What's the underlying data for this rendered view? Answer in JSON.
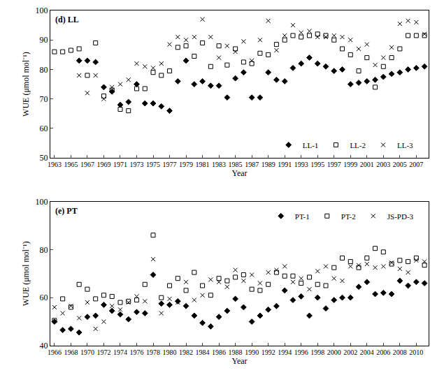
{
  "chart_data": [
    {
      "type": "scatter",
      "title": "(d) LL",
      "x_label": "Year",
      "y_label": "WUE (μmol mol⁻¹)",
      "x": [
        1963,
        1964,
        1965,
        1966,
        1967,
        1968,
        1969,
        1970,
        1971,
        1972,
        1973,
        1974,
        1975,
        1976,
        1977,
        1978,
        1979,
        1980,
        1981,
        1982,
        1983,
        1984,
        1985,
        1986,
        1987,
        1988,
        1989,
        1990,
        1991,
        1992,
        1993,
        1994,
        1995,
        1996,
        1997,
        1998,
        1999,
        2000,
        2001,
        2002,
        2003,
        2004,
        2005,
        2006,
        2007,
        2008
      ],
      "series": [
        {
          "name": "LL-1",
          "color": "#000000",
          "marker": "diamond",
          "values": [
            null,
            null,
            null,
            83,
            83,
            82.5,
            74,
            72.5,
            68,
            69,
            75,
            68.5,
            68.5,
            67.5,
            66,
            76,
            83,
            75,
            76,
            74.5,
            74.5,
            70.5,
            77,
            79,
            70.5,
            70.5,
            79,
            76.5,
            76,
            80.5,
            82,
            84,
            82,
            81,
            79.5,
            80,
            75,
            75.5,
            76,
            76.5,
            77.5,
            78.5,
            79,
            80,
            80.5,
            81
          ]
        },
        {
          "name": "LL-2",
          "color": "#000000",
          "marker": "square-open",
          "values": [
            86,
            86,
            86.5,
            87,
            78,
            89,
            71,
            73,
            66.5,
            66,
            73.5,
            73.5,
            79,
            78,
            79.5,
            87.5,
            88,
            84.5,
            89,
            81,
            88,
            81.5,
            87,
            82.5,
            82,
            85.5,
            85,
            88.5,
            90,
            91.5,
            91,
            91.5,
            92,
            91.5,
            90,
            87,
            85,
            79.5,
            84,
            74,
            81,
            84,
            87,
            91.5,
            91.5,
            91.5
          ]
        },
        {
          "name": "LL-3",
          "color": "#000000",
          "marker": "x-thin-open",
          "values": [
            null,
            null,
            null,
            78,
            72,
            78,
            70,
            74,
            75,
            76.5,
            82,
            81,
            80.5,
            82,
            88.5,
            91,
            90,
            91,
            97,
            91,
            84,
            88,
            86,
            89.5,
            83,
            90,
            96.5,
            86.5,
            91.5,
            95,
            92.5,
            93,
            91,
            91,
            91.5,
            91,
            90,
            87,
            88.5,
            81.5,
            84,
            87.5,
            95.5,
            96.5,
            96,
            92
          ]
        }
      ],
      "xlim": [
        1962.5,
        2008.5
      ],
      "xticks": [
        1963,
        1965,
        1967,
        1969,
        1971,
        1973,
        1975,
        1977,
        1979,
        1981,
        1983,
        1985,
        1987,
        1989,
        1991,
        1993,
        1995,
        1997,
        1999,
        2001,
        2003,
        2005,
        2007
      ],
      "ylim": [
        50,
        100
      ],
      "yticks": [
        50,
        60,
        70,
        80,
        90,
        100
      ],
      "grid": false,
      "legend": "lower right"
    },
    {
      "type": "scatter",
      "title": "(e) PT",
      "x_label": "Year",
      "y_label": "WUE (μmol mol⁻¹)",
      "x": [
        1966,
        1967,
        1968,
        1969,
        1970,
        1971,
        1972,
        1973,
        1974,
        1975,
        1976,
        1977,
        1978,
        1979,
        1980,
        1981,
        1982,
        1983,
        1984,
        1985,
        1986,
        1987,
        1988,
        1989,
        1990,
        1991,
        1992,
        1993,
        1994,
        1995,
        1996,
        1997,
        1998,
        1999,
        2000,
        2001,
        2002,
        2003,
        2004,
        2005,
        2006,
        2007,
        2008,
        2009,
        2010,
        2011
      ],
      "series": [
        {
          "name": "PT-1",
          "color": "#000000",
          "marker": "diamond",
          "values": [
            50,
            46.5,
            47,
            45.5,
            52,
            52.5,
            57,
            54.5,
            53,
            51,
            54,
            53.5,
            69.5,
            57.5,
            57,
            58.5,
            56.5,
            52.5,
            49.5,
            48,
            52,
            54.5,
            59.5,
            56,
            50,
            52.5,
            55,
            56.5,
            63,
            59,
            60.5,
            52.5,
            60,
            55.5,
            59,
            60,
            60,
            64.5,
            66.5,
            61.5,
            62,
            61.5,
            67,
            65,
            66.5,
            66
          ]
        },
        {
          "name": "PT-2",
          "color": "#000000",
          "marker": "square-open",
          "values": [
            50.5,
            59.5,
            56,
            65.5,
            63.5,
            59.5,
            61,
            60.5,
            58,
            58.5,
            59,
            65.5,
            86,
            60,
            65,
            68,
            63,
            70.5,
            65,
            61,
            68,
            67,
            68.5,
            69.5,
            63.5,
            63,
            65.5,
            70.5,
            69,
            69,
            66,
            68.5,
            65.5,
            65,
            72.5,
            76.5,
            75,
            72.5,
            76.5,
            80.5,
            79,
            74,
            75.5,
            75,
            76.5,
            73.5
          ]
        },
        {
          "name": "JS-PD-3",
          "color": "#000000",
          "marker": "x-thin-open",
          "values": [
            56,
            53.5,
            56.5,
            51.5,
            58,
            47,
            50,
            56.5,
            55,
            58,
            60.5,
            58.5,
            76,
            53.5,
            59.5,
            58,
            66.5,
            59,
            61,
            67.5,
            66.5,
            64.5,
            71.5,
            67,
            69.5,
            66,
            70.5,
            71.5,
            73,
            66.5,
            68,
            63.5,
            71,
            73,
            68,
            67,
            73,
            73.5,
            74,
            72.5,
            73,
            74.5,
            72,
            70.5,
            75.5,
            75
          ]
        }
      ],
      "xlim": [
        1965.5,
        2011.5
      ],
      "xticks": [
        1966,
        1968,
        1970,
        1972,
        1974,
        1976,
        1978,
        1980,
        1982,
        1984,
        1986,
        1988,
        1990,
        1992,
        1994,
        1996,
        1998,
        2000,
        2002,
        2004,
        2006,
        2008,
        2010
      ],
      "ylim": [
        40,
        100
      ],
      "yticks": [
        40,
        60,
        80,
        100
      ],
      "grid": false,
      "legend": "upper right"
    }
  ]
}
